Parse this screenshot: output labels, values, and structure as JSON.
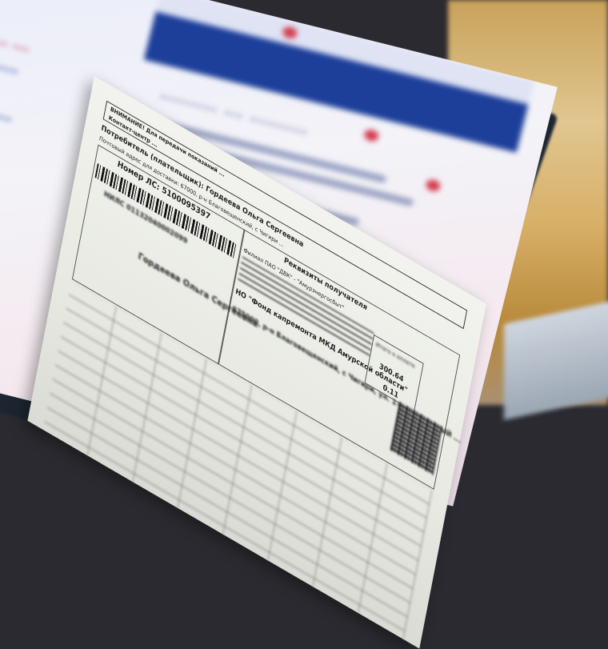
{
  "screen": {
    "side_links": [
      "...",
      "... ... ...",
      "... ......",
      "... ...",
      "... ... ...",
      "...",
      "... ..."
    ],
    "heading": "......... ... .........",
    "accent_color": "#1d3f9a"
  },
  "bill": {
    "warning": "ВНИМАНИЕ! Для передачи показаний ...",
    "contact_center": "Контакт-центр ...",
    "consumer": "Потребитель (плательщик): Гордеева Ольга Сергеевна",
    "delivery_address": "Почтовый адрес для доставки: 67000, р-н Благовещенский, с Чигири ...",
    "account_number": "Номер ЛС: 5100095397",
    "snils": "НИЛС 01132040002099",
    "payer_name": "Гордеева Ольга Сергеевна",
    "recipient_heading": "Реквизиты получателя",
    "bank": "Филиал ПАО \"ДВК\" - \"Амурэнергосбыт\"",
    "fund": "НО \"Фонд капремонта МКД Амурской области\"",
    "address": "675000, р-н Благовещенский, с Чигири, ул. 1-й ТЕПЛИЧНЫЙ ...",
    "amount_label": "Итого к оплате",
    "amount": "300.64",
    "rate": "0.11"
  }
}
